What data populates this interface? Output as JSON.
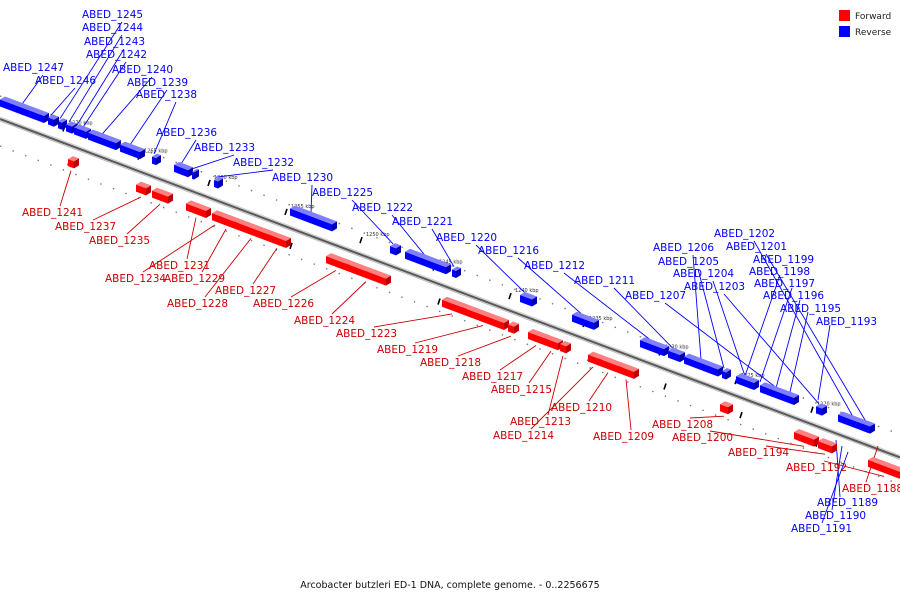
{
  "legend": {
    "forward_label": "Forward",
    "reverse_label": "Reverse",
    "forward_color": "#ff0000",
    "reverse_color": "#0000ff"
  },
  "caption": "Arcobacter butzleri ED-1 DNA, complete genome. - 0..2256675",
  "tick_labels": [
    "1270 kbp",
    "1265 kbp",
    "1260 kbp",
    "1255 kbp",
    "1250 kbp",
    "1245 kbp",
    "1240 kbp",
    "1235 kbp",
    "1230 kbp",
    "1225 kbp",
    "1220 kbp"
  ],
  "reverse_genes": [
    "ABED_1245",
    "ABED_1244",
    "ABED_1243",
    "ABED_1242",
    "ABED_1247",
    "ABED_1246",
    "ABED_1240",
    "ABED_1239",
    "ABED_1238",
    "ABED_1236",
    "ABED_1233",
    "ABED_1232",
    "ABED_1230",
    "ABED_1225",
    "ABED_1222",
    "ABED_1221",
    "ABED_1220",
    "ABED_1216",
    "ABED_1212",
    "ABED_1211",
    "ABED_1206",
    "ABED_1205",
    "ABED_1204",
    "ABED_1207",
    "ABED_1203",
    "ABED_1202",
    "ABED_1201",
    "ABED_1199",
    "ABED_1198",
    "ABED_1197",
    "ABED_1196",
    "ABED_1195",
    "ABED_1193",
    "ABED_1189",
    "ABED_1190",
    "ABED_1191"
  ],
  "forward_genes": [
    "ABED_1241",
    "ABED_1237",
    "ABED_1235",
    "ABED_1231",
    "ABED_1234",
    "ABED_1229",
    "ABED_1228",
    "ABED_1227",
    "ABED_1226",
    "ABED_1224",
    "ABED_1223",
    "ABED_1219",
    "ABED_1218",
    "ABED_1217",
    "ABED_1215",
    "ABED_1213",
    "ABED_1214",
    "ABED_1210",
    "ABED_1209",
    "ABED_1208",
    "ABED_1200",
    "ABED_1194",
    "ABED_1192",
    "ABED_1188"
  ]
}
